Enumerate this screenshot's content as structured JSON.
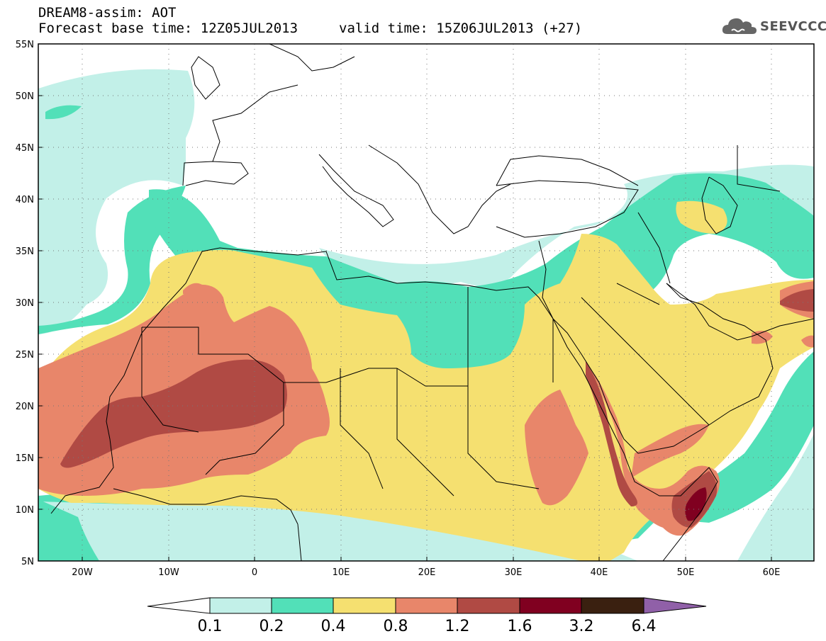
{
  "header": {
    "title": "DREAM8-assim: AOT",
    "forecast_base": "Forecast base time: 12Z05JUL2013",
    "valid_time": "valid time: 15Z06JUL2013 (+27)",
    "logo_text": "SEEVCCC",
    "logo_icon": "cloud-icon"
  },
  "map": {
    "variable": "AOT",
    "lon_range": [
      -25,
      65
    ],
    "lat_range": [
      5,
      55
    ],
    "lon_ticks": [
      "20W",
      "10W",
      "0",
      "10E",
      "20E",
      "30E",
      "40E",
      "50E",
      "60E"
    ],
    "lat_ticks": [
      "5N",
      "10N",
      "15N",
      "20N",
      "25N",
      "30N",
      "35N",
      "40N",
      "45N",
      "50N",
      "55N"
    ],
    "gridlines": "dotted"
  },
  "colorbar": {
    "labels": [
      "0.1",
      "0.2",
      "0.4",
      "0.8",
      "1.2",
      "1.6",
      "3.2",
      "6.4"
    ],
    "colors": [
      "#ffffff",
      "#c2f0e8",
      "#52e0b8",
      "#f5e070",
      "#e8866a",
      "#b04a44",
      "#800020",
      "#3a2010",
      "#9060a8"
    ]
  }
}
